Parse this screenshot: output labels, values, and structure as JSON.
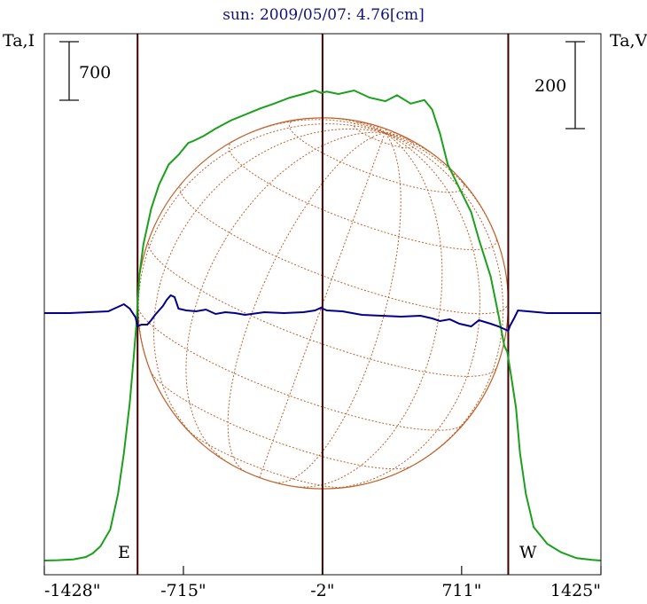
{
  "title": "sun: 2009/05/07: 4.76[cm]",
  "colors": {
    "title": "#101080",
    "frame": "#101010",
    "limb_lines": "#400000",
    "grid": "#c0602a",
    "stokes_i": "#1aa01a",
    "stokes_v": "#00008b"
  },
  "chart_data": {
    "type": "line",
    "title": "sun: 2009/05/07: 4.76[cm]",
    "left_axis_label": "Ta,I",
    "right_axis_label": "Ta,V",
    "scale_bars": [
      {
        "axis": "left",
        "value": "700"
      },
      {
        "axis": "right",
        "value": "200"
      }
    ],
    "x_ticks": [
      "-1428\"",
      "-715\"",
      "-2\"",
      "711\"",
      "1425\""
    ],
    "x_tick_values": [
      -1428,
      -715,
      -2,
      711,
      1425
    ],
    "xlim": [
      -1428,
      1425
    ],
    "limb_markers": [
      {
        "label": "E",
        "x": -950
      },
      {
        "label": "W",
        "x": 950
      }
    ],
    "center_line_x": -2,
    "grid": true,
    "series": [
      {
        "id": "stokes_i",
        "x": [
          -1428,
          -1360,
          -1280,
          -1215,
          -1180,
          -1140,
          -1090,
          -1050,
          -1020,
          -990,
          -970,
          -955,
          -950,
          -940,
          -920,
          -880,
          -840,
          -790,
          -740,
          -690,
          -660,
          -610,
          -550,
          -470,
          -380,
          -320,
          -250,
          -170,
          -100,
          -40,
          -10,
          20,
          80,
          160,
          240,
          320,
          380,
          450,
          520,
          560,
          600,
          640,
          700,
          760,
          800,
          860,
          900,
          930,
          945,
          960,
          990,
          1010,
          1040,
          1080,
          1150,
          1220,
          1300,
          1380,
          1425
        ],
        "y": [
          0,
          3,
          10,
          30,
          60,
          120,
          260,
          560,
          900,
          1320,
          1700,
          2000,
          2150,
          2400,
          2650,
          2950,
          3150,
          3320,
          3400,
          3500,
          3520,
          3560,
          3620,
          3690,
          3750,
          3790,
          3830,
          3880,
          3910,
          3940,
          3920,
          3930,
          3910,
          3940,
          3880,
          3850,
          3900,
          3830,
          3860,
          3780,
          3580,
          3320,
          3120,
          2920,
          2690,
          2380,
          2060,
          1800,
          1750,
          1600,
          1280,
          900,
          560,
          280,
          140,
          70,
          20,
          5,
          0
        ]
      },
      {
        "id": "stokes_v",
        "x": [
          -1428,
          -1300,
          -1200,
          -1100,
          -1020,
          -990,
          -960,
          -950,
          -930,
          -900,
          -880,
          -860,
          -840,
          -820,
          -800,
          -780,
          -760,
          -740,
          -700,
          -650,
          -600,
          -550,
          -500,
          -450,
          -400,
          -300,
          -200,
          -100,
          -40,
          -10,
          20,
          100,
          200,
          300,
          400,
          500,
          560,
          600,
          650,
          700,
          760,
          800,
          860,
          900,
          930,
          950,
          960,
          980,
          1000,
          1050,
          1150,
          1300,
          1425
        ],
        "y": [
          0,
          0,
          1,
          2,
          10,
          5,
          -5,
          -15,
          -13,
          -13,
          -8,
          -2,
          3,
          8,
          15,
          20,
          18,
          5,
          3,
          2,
          4,
          -1,
          1,
          0,
          -2,
          1,
          0,
          1,
          3,
          6,
          3,
          2,
          -2,
          -3,
          -4,
          -3,
          -6,
          -9,
          -7,
          -12,
          -15,
          -8,
          -12,
          -15,
          -18,
          -20,
          -14,
          -6,
          3,
          2,
          0,
          0,
          0
        ]
      }
    ]
  },
  "disk": {
    "radius_arcsec": 950,
    "meridian_tilt_deg": -20,
    "latitude_shift_deg": 12
  }
}
